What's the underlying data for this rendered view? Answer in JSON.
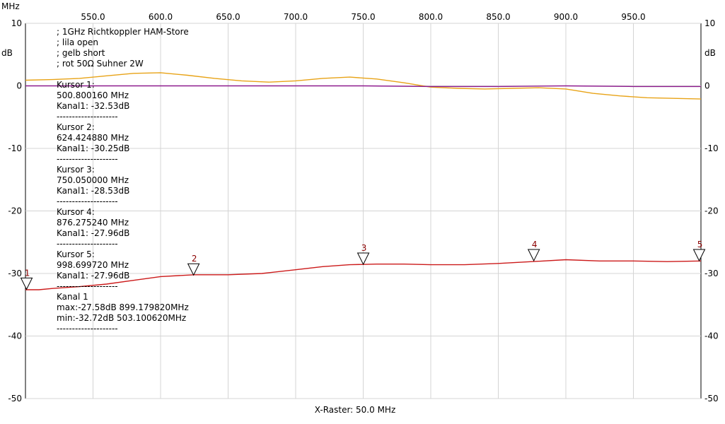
{
  "chart_data": {
    "type": "line",
    "x_unit_label": "MHz",
    "y_unit_label": "dB",
    "xlim": [
      500,
      1000
    ],
    "ylim": [
      -50,
      10
    ],
    "x_ticks": [
      550.0,
      600.0,
      650.0,
      700.0,
      750.0,
      800.0,
      850.0,
      900.0,
      950.0
    ],
    "x_tick_labels": [
      "550.0",
      "600.0",
      "650.0",
      "700.0",
      "750.0",
      "800.0",
      "850.0",
      "900.0",
      "950.0"
    ],
    "y_ticks": [
      10,
      0,
      -10,
      -20,
      -30,
      -40,
      -50
    ],
    "y_tick_labels": [
      "10",
      "0",
      "-10",
      "-20",
      "-30",
      "-40",
      "-50"
    ],
    "xlabel": "X-Raster: 50.0 MHz",
    "grid": true,
    "notes": [
      "; 1GHz Richtkoppler HAM-Store",
      "; lila open",
      "; gelb short",
      "; rot 50Ω Suhner 2W"
    ],
    "series": [
      {
        "key": "yellow",
        "color": "#e8a317",
        "x": [
          500,
          520,
          540,
          560,
          580,
          600,
          620,
          640,
          660,
          680,
          700,
          720,
          740,
          760,
          780,
          800,
          820,
          840,
          860,
          880,
          900,
          920,
          940,
          960,
          980,
          1000
        ],
        "y": [
          0.9,
          1.0,
          1.2,
          1.6,
          2.0,
          2.1,
          1.7,
          1.2,
          0.8,
          0.6,
          0.8,
          1.2,
          1.4,
          1.1,
          0.5,
          -0.2,
          -0.4,
          -0.5,
          -0.4,
          -0.3,
          -0.5,
          -1.2,
          -1.6,
          -1.9,
          -2.0,
          -2.1
        ]
      },
      {
        "key": "purple",
        "color": "#8e1a8e",
        "x": [
          500,
          550,
          600,
          650,
          700,
          750,
          800,
          850,
          900,
          950,
          1000
        ],
        "y": [
          0.0,
          0.0,
          0.0,
          0.0,
          0.0,
          0.0,
          -0.1,
          -0.1,
          0.0,
          -0.1,
          -0.1
        ]
      },
      {
        "key": "red",
        "color": "#cc1a1a",
        "x": [
          500,
          510,
          520,
          540,
          560,
          580,
          600,
          625,
          650,
          675,
          700,
          720,
          740,
          760,
          780,
          800,
          825,
          850,
          875,
          900,
          925,
          950,
          975,
          1000
        ],
        "y": [
          -32.6,
          -32.6,
          -32.4,
          -32.1,
          -31.7,
          -31.1,
          -30.5,
          -30.2,
          -30.2,
          -30.0,
          -29.4,
          -28.9,
          -28.6,
          -28.5,
          -28.5,
          -28.6,
          -28.6,
          -28.4,
          -28.1,
          -27.8,
          -28.0,
          -28.0,
          -28.1,
          -28.0
        ]
      }
    ],
    "markers": [
      {
        "label": "1",
        "x": 500.8,
        "y": -32.53
      },
      {
        "label": "2",
        "x": 624.42488,
        "y": -30.25
      },
      {
        "label": "3",
        "x": 750.05,
        "y": -28.53
      },
      {
        "label": "4",
        "x": 876.27524,
        "y": -27.96
      },
      {
        "label": "5",
        "x": 998.69972,
        "y": -27.96
      }
    ],
    "cursor_readout": [
      "Kursor 1:",
      "500.800160 MHz",
      "Kanal1: -32.53dB",
      "--------------------",
      "Kursor 2:",
      "624.424880 MHz",
      "Kanal1: -30.25dB",
      "--------------------",
      "Kursor 3:",
      "750.050000 MHz",
      "Kanal1: -28.53dB",
      "--------------------",
      "Kursor 4:",
      "876.275240 MHz",
      "Kanal1: -27.96dB",
      "--------------------",
      "Kursor 5:",
      "998.699720 MHz",
      "Kanal1: -27.96dB",
      "--------------------",
      "Kanal 1",
      "max:-27.58dB 899.179820MHz",
      "min:-32.72dB 503.100620MHz",
      "--------------------"
    ]
  }
}
